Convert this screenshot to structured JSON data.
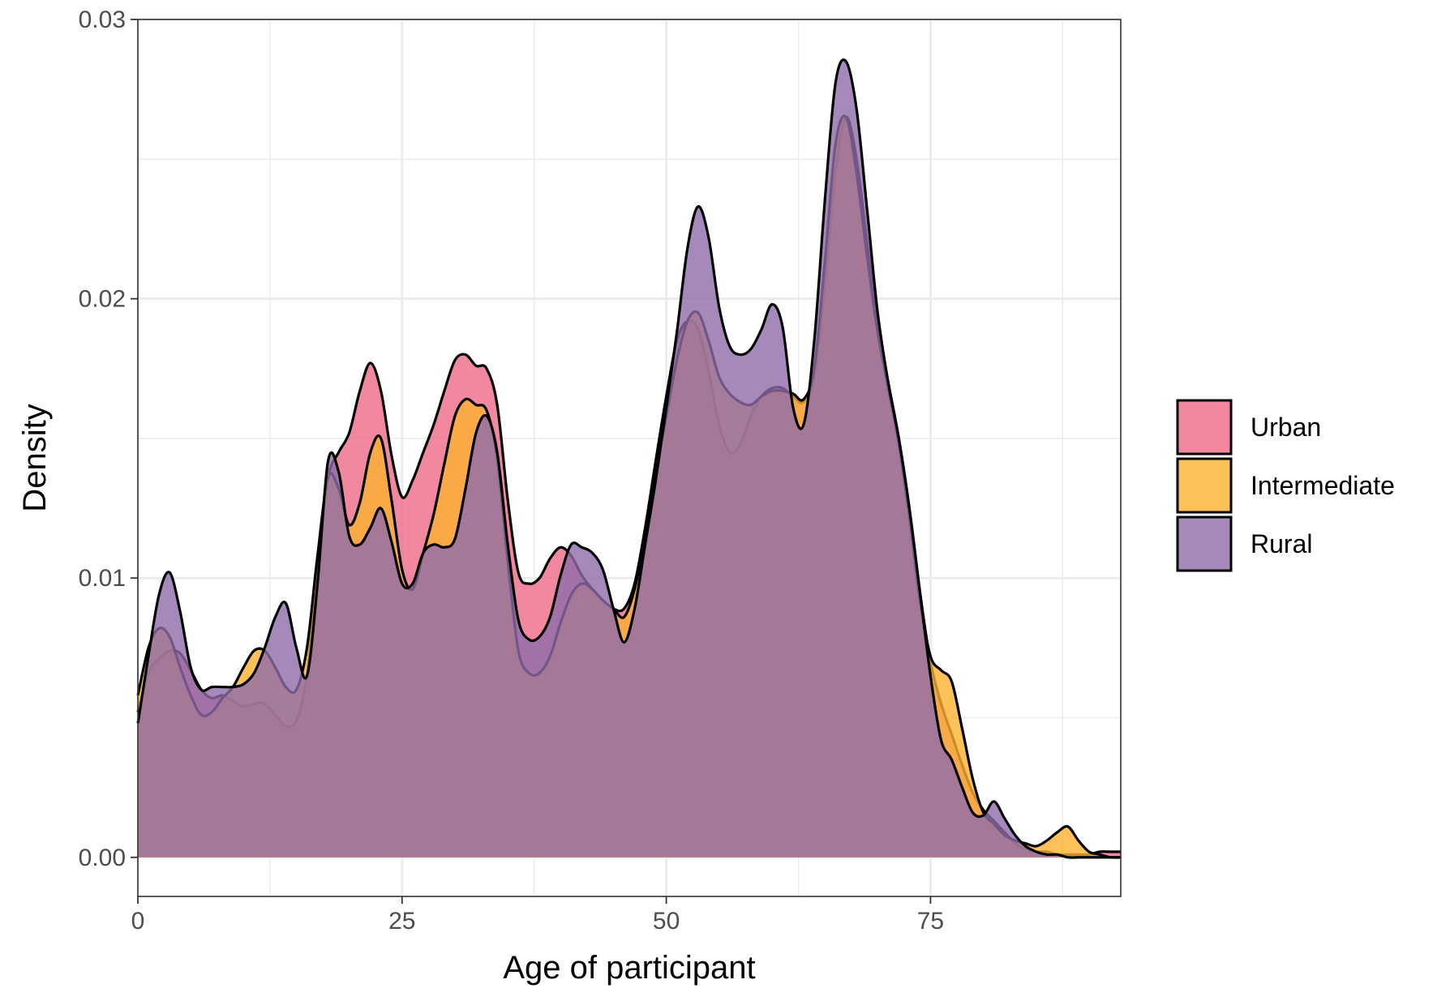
{
  "chart_data": {
    "type": "area",
    "subtype": "density",
    "xlabel": "Age of participant",
    "ylabel": "Density",
    "xlim": [
      0,
      93
    ],
    "ylim": [
      -0.0014,
      0.03
    ],
    "x_ticks": [
      0,
      25,
      50,
      75
    ],
    "x_tick_labels": [
      "0",
      "25",
      "50",
      "75"
    ],
    "y_ticks": [
      0,
      0.01,
      0.02,
      0.03
    ],
    "y_tick_labels": [
      "0.00",
      "0.01",
      "0.02",
      "0.03"
    ],
    "grid": true,
    "legend_position": "right",
    "series": [
      {
        "name": "Urban",
        "color": "#EE6A87",
        "points": [
          [
            0,
            0.0052
          ],
          [
            1,
            0.0066
          ],
          [
            2,
            0.0071
          ],
          [
            3,
            0.0074
          ],
          [
            4,
            0.0073
          ],
          [
            5,
            0.0067
          ],
          [
            6,
            0.006
          ],
          [
            7,
            0.0057
          ],
          [
            8,
            0.0058
          ],
          [
            9,
            0.0056
          ],
          [
            10,
            0.0054
          ],
          [
            11,
            0.0055
          ],
          [
            12,
            0.0055
          ],
          [
            13,
            0.0051
          ],
          [
            14,
            0.0047
          ],
          [
            15,
            0.0049
          ],
          [
            16,
            0.0065
          ],
          [
            17,
            0.0105
          ],
          [
            18,
            0.0136
          ],
          [
            19,
            0.0145
          ],
          [
            20,
            0.0152
          ],
          [
            21,
            0.0167
          ],
          [
            22,
            0.0177
          ],
          [
            23,
            0.0167
          ],
          [
            24,
            0.0144
          ],
          [
            25,
            0.0129
          ],
          [
            26,
            0.0135
          ],
          [
            27,
            0.0145
          ],
          [
            28,
            0.0155
          ],
          [
            29,
            0.0167
          ],
          [
            30,
            0.0178
          ],
          [
            31,
            0.018
          ],
          [
            32,
            0.0176
          ],
          [
            33,
            0.0175
          ],
          [
            34,
            0.0162
          ],
          [
            35,
            0.0128
          ],
          [
            36,
            0.0102
          ],
          [
            37,
            0.0098
          ],
          [
            38,
            0.01
          ],
          [
            39,
            0.0107
          ],
          [
            40,
            0.0111
          ],
          [
            41,
            0.0108
          ],
          [
            42,
            0.0101
          ],
          [
            43,
            0.0096
          ],
          [
            44,
            0.0092
          ],
          [
            45,
            0.0089
          ],
          [
            46,
            0.0089
          ],
          [
            47,
            0.0098
          ],
          [
            48,
            0.0118
          ],
          [
            49,
            0.0142
          ],
          [
            50,
            0.0165
          ],
          [
            51,
            0.0185
          ],
          [
            52,
            0.0192
          ],
          [
            53,
            0.0189
          ],
          [
            54,
            0.0174
          ],
          [
            55,
            0.0155
          ],
          [
            56,
            0.0145
          ],
          [
            57,
            0.0148
          ],
          [
            58,
            0.0158
          ],
          [
            59,
            0.0165
          ],
          [
            60,
            0.0168
          ],
          [
            61,
            0.0168
          ],
          [
            62,
            0.0165
          ],
          [
            63,
            0.0163
          ],
          [
            64,
            0.0172
          ],
          [
            65,
            0.0205
          ],
          [
            66,
            0.0245
          ],
          [
            67,
            0.0265
          ],
          [
            68,
            0.025
          ],
          [
            69,
            0.022
          ],
          [
            70,
            0.019
          ],
          [
            71,
            0.017
          ],
          [
            72,
            0.015
          ],
          [
            73,
            0.0125
          ],
          [
            74,
            0.0095
          ],
          [
            75,
            0.007
          ],
          [
            76,
            0.0055
          ],
          [
            77,
            0.0044
          ],
          [
            78,
            0.0033
          ],
          [
            79,
            0.0023
          ],
          [
            80,
            0.0017
          ],
          [
            81,
            0.0013
          ],
          [
            82,
            0.0009
          ],
          [
            83,
            0.0005
          ],
          [
            84,
            0.0003
          ],
          [
            85,
            0.0002
          ],
          [
            86,
            0.0002
          ],
          [
            87,
            0.0001
          ],
          [
            88,
            0.0001
          ],
          [
            89,
            0.0001
          ],
          [
            90,
            0.0001
          ],
          [
            91,
            0.0002
          ],
          [
            92,
            0.0002
          ],
          [
            93,
            0.0002
          ]
        ]
      },
      {
        "name": "Intermediate",
        "color": "#FBB230",
        "points": [
          [
            0,
            0.0058
          ],
          [
            1,
            0.0075
          ],
          [
            2,
            0.0082
          ],
          [
            3,
            0.0079
          ],
          [
            4,
            0.0068
          ],
          [
            5,
            0.0058
          ],
          [
            6,
            0.0051
          ],
          [
            7,
            0.0052
          ],
          [
            8,
            0.0057
          ],
          [
            9,
            0.0061
          ],
          [
            10,
            0.0068
          ],
          [
            11,
            0.0074
          ],
          [
            12,
            0.0074
          ],
          [
            13,
            0.0068
          ],
          [
            14,
            0.0061
          ],
          [
            15,
            0.006
          ],
          [
            16,
            0.0075
          ],
          [
            17,
            0.0108
          ],
          [
            18,
            0.0136
          ],
          [
            19,
            0.0132
          ],
          [
            20,
            0.0119
          ],
          [
            21,
            0.0127
          ],
          [
            22,
            0.0145
          ],
          [
            23,
            0.015
          ],
          [
            24,
            0.0128
          ],
          [
            25,
            0.0103
          ],
          [
            26,
            0.0096
          ],
          [
            27,
            0.0109
          ],
          [
            28,
            0.0123
          ],
          [
            29,
            0.0141
          ],
          [
            30,
            0.0158
          ],
          [
            31,
            0.0164
          ],
          [
            32,
            0.0162
          ],
          [
            33,
            0.016
          ],
          [
            34,
            0.0143
          ],
          [
            35,
            0.0106
          ],
          [
            36,
            0.0074
          ],
          [
            37,
            0.0066
          ],
          [
            38,
            0.0066
          ],
          [
            39,
            0.0072
          ],
          [
            40,
            0.0084
          ],
          [
            41,
            0.0094
          ],
          [
            42,
            0.0098
          ],
          [
            43,
            0.0096
          ],
          [
            44,
            0.0092
          ],
          [
            45,
            0.0089
          ],
          [
            46,
            0.0086
          ],
          [
            47,
            0.0096
          ],
          [
            48,
            0.0115
          ],
          [
            49,
            0.0138
          ],
          [
            50,
            0.0158
          ],
          [
            51,
            0.0178
          ],
          [
            52,
            0.0192
          ],
          [
            53,
            0.0195
          ],
          [
            54,
            0.0185
          ],
          [
            55,
            0.0172
          ],
          [
            56,
            0.0166
          ],
          [
            57,
            0.0163
          ],
          [
            58,
            0.0162
          ],
          [
            59,
            0.0165
          ],
          [
            60,
            0.0167
          ],
          [
            61,
            0.0167
          ],
          [
            62,
            0.0166
          ],
          [
            63,
            0.0164
          ],
          [
            64,
            0.0175
          ],
          [
            65,
            0.0213
          ],
          [
            66,
            0.0255
          ],
          [
            67,
            0.0265
          ],
          [
            68,
            0.0245
          ],
          [
            69,
            0.0215
          ],
          [
            70,
            0.0188
          ],
          [
            71,
            0.0168
          ],
          [
            72,
            0.0148
          ],
          [
            73,
            0.0122
          ],
          [
            74,
            0.0092
          ],
          [
            75,
            0.0072
          ],
          [
            76,
            0.0067
          ],
          [
            77,
            0.0063
          ],
          [
            78,
            0.0046
          ],
          [
            79,
            0.0028
          ],
          [
            80,
            0.0016
          ],
          [
            81,
            0.0012
          ],
          [
            82,
            0.0008
          ],
          [
            83,
            0.0006
          ],
          [
            84,
            0.0005
          ],
          [
            85,
            0.0004
          ],
          [
            86,
            0.0006
          ],
          [
            87,
            0.0009
          ],
          [
            88,
            0.0011
          ],
          [
            89,
            0.0006
          ],
          [
            90,
            0.0002
          ],
          [
            91,
            0.0001
          ],
          [
            92,
            0.0
          ],
          [
            93,
            0.0
          ]
        ]
      },
      {
        "name": "Rural",
        "color": "#8E6BAA",
        "points": [
          [
            0,
            0.0048
          ],
          [
            1,
            0.0072
          ],
          [
            2,
            0.0094
          ],
          [
            3,
            0.0102
          ],
          [
            4,
            0.0088
          ],
          [
            5,
            0.0068
          ],
          [
            6,
            0.006
          ],
          [
            7,
            0.0061
          ],
          [
            8,
            0.0061
          ],
          [
            9,
            0.0061
          ],
          [
            10,
            0.0062
          ],
          [
            11,
            0.0066
          ],
          [
            12,
            0.0075
          ],
          [
            13,
            0.0086
          ],
          [
            14,
            0.0091
          ],
          [
            15,
            0.0075
          ],
          [
            16,
            0.0065
          ],
          [
            17,
            0.0098
          ],
          [
            18,
            0.0142
          ],
          [
            19,
            0.0138
          ],
          [
            20,
            0.0115
          ],
          [
            21,
            0.0112
          ],
          [
            22,
            0.0118
          ],
          [
            23,
            0.0125
          ],
          [
            24,
            0.0113
          ],
          [
            25,
            0.0098
          ],
          [
            26,
            0.0098
          ],
          [
            27,
            0.0109
          ],
          [
            28,
            0.0112
          ],
          [
            29,
            0.0111
          ],
          [
            30,
            0.0114
          ],
          [
            31,
            0.0132
          ],
          [
            32,
            0.0152
          ],
          [
            33,
            0.0158
          ],
          [
            34,
            0.0145
          ],
          [
            35,
            0.0112
          ],
          [
            36,
            0.0085
          ],
          [
            37,
            0.0078
          ],
          [
            38,
            0.0079
          ],
          [
            39,
            0.0086
          ],
          [
            40,
            0.0101
          ],
          [
            41,
            0.0112
          ],
          [
            42,
            0.0111
          ],
          [
            43,
            0.0109
          ],
          [
            44,
            0.0103
          ],
          [
            45,
            0.0089
          ],
          [
            46,
            0.0077
          ],
          [
            47,
            0.0089
          ],
          [
            48,
            0.0112
          ],
          [
            49,
            0.0135
          ],
          [
            50,
            0.0161
          ],
          [
            51,
            0.0188
          ],
          [
            52,
            0.0218
          ],
          [
            53,
            0.0233
          ],
          [
            54,
            0.0222
          ],
          [
            55,
            0.0197
          ],
          [
            56,
            0.0183
          ],
          [
            57,
            0.018
          ],
          [
            58,
            0.0182
          ],
          [
            59,
            0.0189
          ],
          [
            60,
            0.0198
          ],
          [
            61,
            0.019
          ],
          [
            62,
            0.0161
          ],
          [
            63,
            0.0155
          ],
          [
            64,
            0.0185
          ],
          [
            65,
            0.0235
          ],
          [
            66,
            0.0277
          ],
          [
            67,
            0.0285
          ],
          [
            68,
            0.0268
          ],
          [
            69,
            0.0232
          ],
          [
            70,
            0.0195
          ],
          [
            71,
            0.017
          ],
          [
            72,
            0.015
          ],
          [
            73,
            0.0125
          ],
          [
            74,
            0.0095
          ],
          [
            75,
            0.0065
          ],
          [
            76,
            0.0042
          ],
          [
            77,
            0.0035
          ],
          [
            78,
            0.0025
          ],
          [
            79,
            0.0016
          ],
          [
            80,
            0.0015
          ],
          [
            81,
            0.002
          ],
          [
            82,
            0.0014
          ],
          [
            83,
            0.0008
          ],
          [
            84,
            0.0004
          ],
          [
            85,
            0.0002
          ],
          [
            86,
            0.0001
          ],
          [
            87,
            0.0001
          ],
          [
            88,
            0.0
          ],
          [
            89,
            0.0
          ],
          [
            90,
            0.0
          ],
          [
            91,
            0.0
          ],
          [
            92,
            0.0
          ],
          [
            93,
            0.0
          ]
        ]
      }
    ]
  }
}
